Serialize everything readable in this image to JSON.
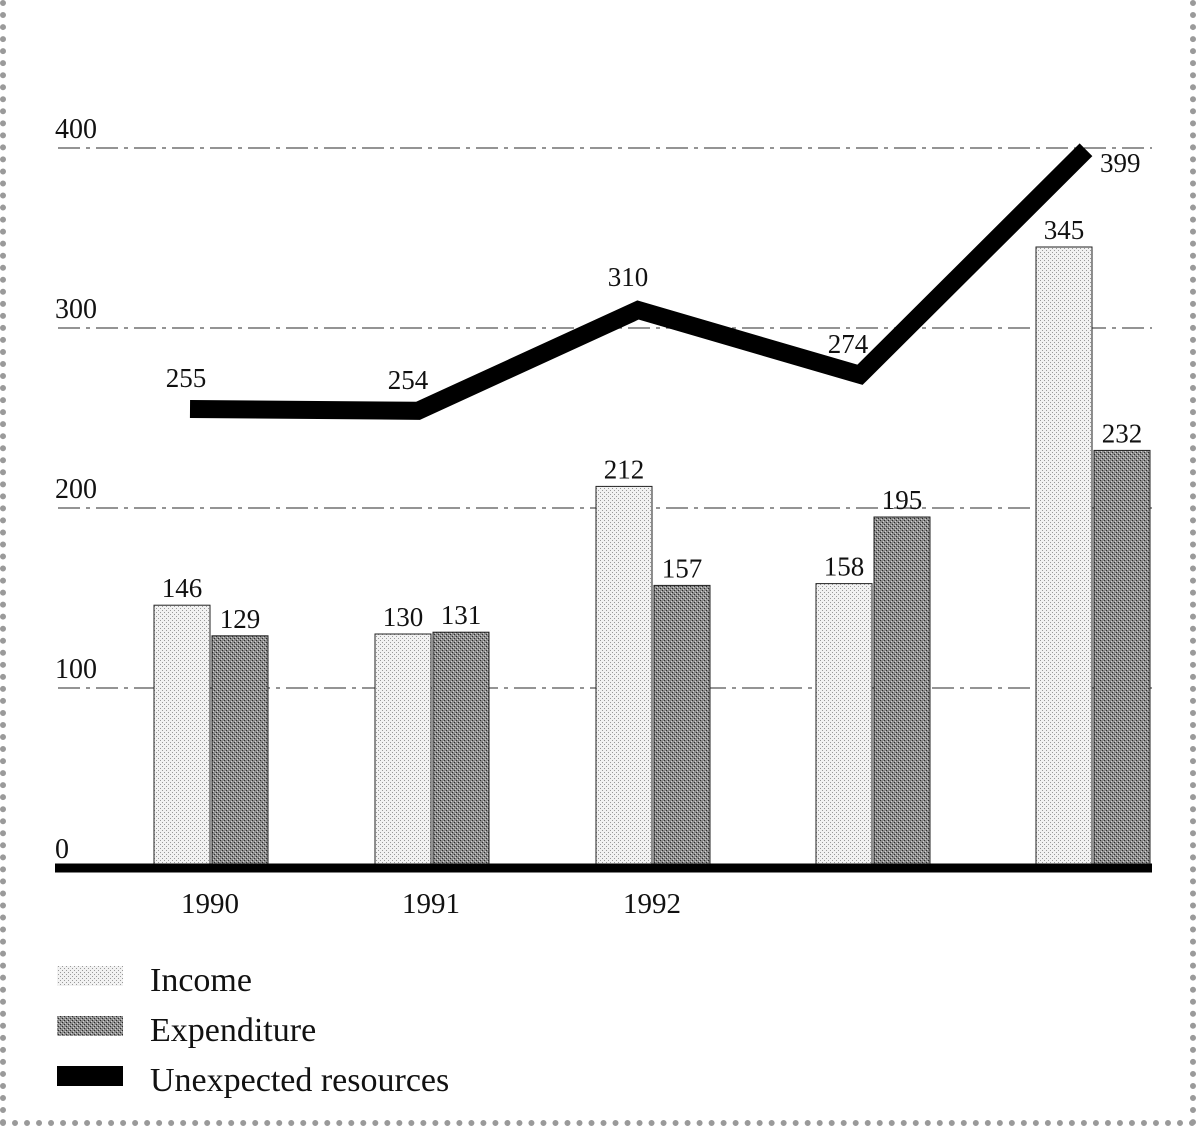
{
  "chart_data": {
    "type": "bar",
    "categories": [
      "1990",
      "1991",
      "1992",
      "",
      ""
    ],
    "series": [
      {
        "name": "Income",
        "type": "bar",
        "values": [
          146,
          130,
          212,
          158,
          345
        ],
        "color": "#e6e6e6"
      },
      {
        "name": "Expenditure",
        "type": "bar",
        "values": [
          129,
          131,
          157,
          195,
          232
        ],
        "color": "#9c9c9c"
      },
      {
        "name": "Unexpected resources",
        "type": "line",
        "values": [
          255,
          254,
          310,
          274,
          399
        ],
        "color": "#000000"
      }
    ],
    "yticks": [
      0,
      100,
      200,
      300,
      400
    ],
    "ylim": [
      0,
      400
    ],
    "grid": "dashed horizontal",
    "legend": "bottom-left",
    "title": "",
    "xlabel": "",
    "ylabel": ""
  }
}
